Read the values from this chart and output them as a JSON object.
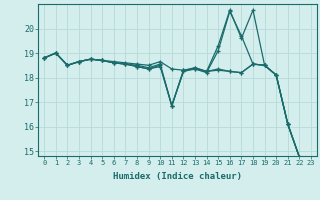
{
  "xlabel": "Humidex (Indice chaleur)",
  "x_values": [
    0,
    1,
    2,
    3,
    4,
    5,
    6,
    7,
    8,
    9,
    10,
    11,
    12,
    13,
    14,
    15,
    16,
    17,
    18,
    19,
    20,
    21,
    22,
    23
  ],
  "series": [
    [
      18.8,
      19.0,
      18.5,
      18.65,
      18.75,
      18.7,
      18.65,
      18.6,
      18.55,
      18.5,
      18.65,
      18.35,
      18.3,
      18.35,
      18.25,
      18.3,
      18.25,
      18.2,
      18.55,
      18.5,
      18.1,
      16.1,
      14.75,
      14.65
    ],
    [
      18.8,
      19.0,
      18.5,
      18.65,
      18.75,
      18.7,
      18.6,
      18.55,
      18.5,
      18.4,
      18.55,
      16.85,
      18.25,
      18.4,
      18.25,
      18.35,
      18.25,
      18.2,
      18.55,
      18.5,
      18.1,
      16.1,
      14.75,
      14.65
    ],
    [
      18.8,
      19.0,
      18.5,
      18.65,
      18.75,
      18.7,
      18.6,
      18.55,
      18.45,
      18.35,
      18.45,
      16.85,
      18.25,
      18.35,
      18.2,
      19.1,
      20.7,
      19.7,
      18.55,
      18.5,
      18.1,
      16.1,
      14.75,
      14.65
    ],
    [
      18.8,
      19.0,
      18.5,
      18.65,
      18.75,
      18.7,
      18.6,
      18.55,
      18.45,
      18.35,
      18.5,
      16.85,
      18.3,
      18.4,
      18.25,
      19.3,
      20.75,
      19.6,
      20.75,
      18.5,
      18.1,
      16.1,
      14.75,
      14.65
    ]
  ],
  "line_color": "#1a6b6b",
  "bg_color": "#d4eeed",
  "grid_color": "#b8d8d8",
  "ylim": [
    14.8,
    21.0
  ],
  "yticks": [
    15,
    16,
    17,
    18,
    19,
    20
  ],
  "xticks": [
    0,
    1,
    2,
    3,
    4,
    5,
    6,
    7,
    8,
    9,
    10,
    11,
    12,
    13,
    14,
    15,
    16,
    17,
    18,
    19,
    20,
    21,
    22,
    23
  ]
}
